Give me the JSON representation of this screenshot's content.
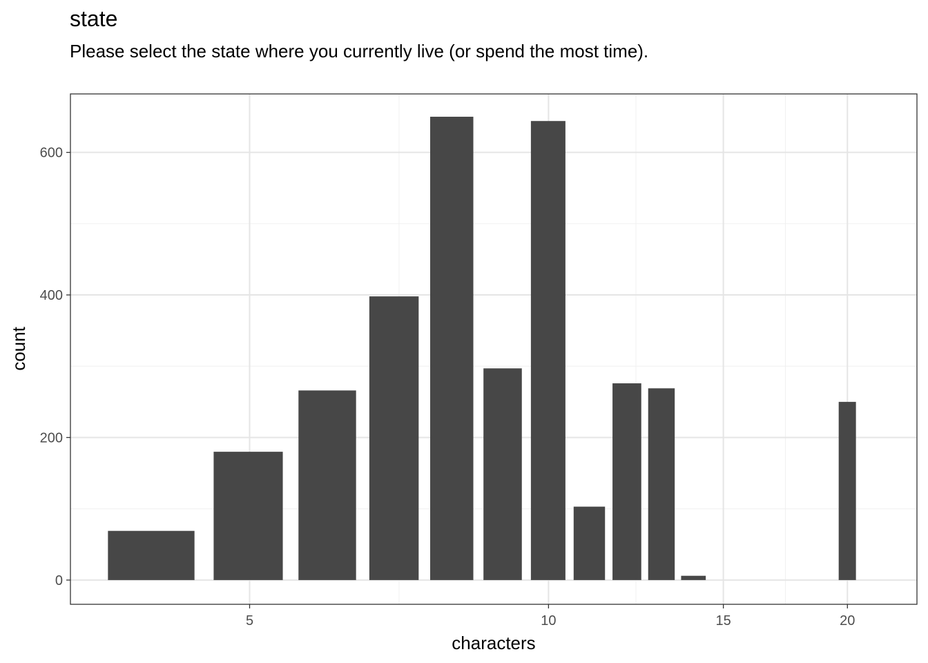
{
  "chart_data": {
    "type": "bar",
    "title": "state",
    "subtitle": "Please select the state where you currently live (or spend the most time).",
    "xlabel": "characters",
    "ylabel": "count",
    "x_scale": "log",
    "xlim": [
      3.3,
      23.5
    ],
    "ylim": [
      -34,
      682
    ],
    "x_ticks": [
      5,
      10,
      15,
      20
    ],
    "y_ticks": [
      0,
      200,
      400,
      600
    ],
    "grid": true,
    "bar_color": "#474747",
    "series": [
      {
        "x": [
          4,
          5,
          6,
          7,
          8,
          9,
          10,
          11,
          12,
          13,
          14,
          20
        ],
        "values": [
          69,
          180,
          266,
          398,
          650,
          297,
          644,
          103,
          276,
          269,
          6,
          250
        ]
      }
    ]
  }
}
